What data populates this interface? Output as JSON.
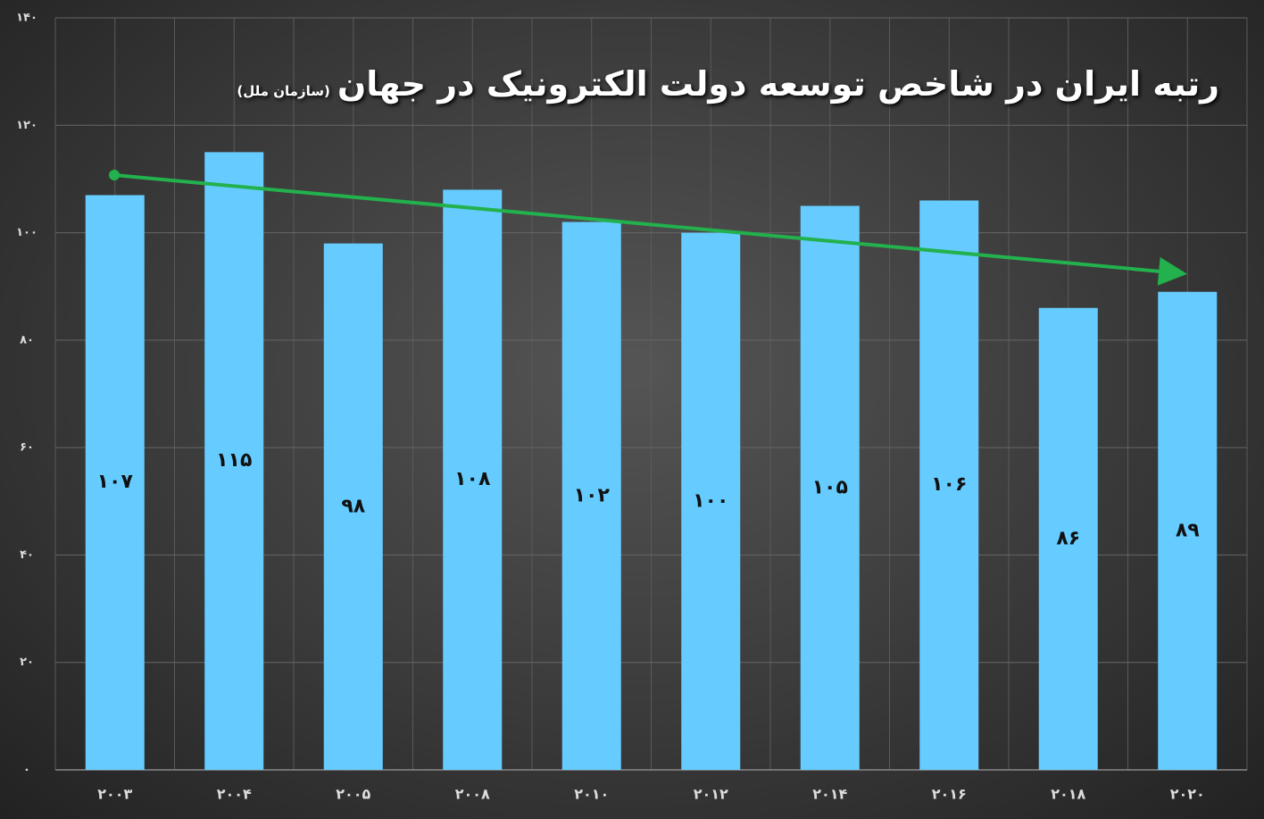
{
  "chart_data": {
    "type": "bar",
    "title": "رتبه ایران در شاخص توسعه دولت الکترونیک در جهان",
    "subtitle": "(سازمان ملل)",
    "categories": [
      "۲۰۰۳",
      "۲۰۰۴",
      "۲۰۰۵",
      "۲۰۰۸",
      "۲۰۱۰",
      "۲۰۱۲",
      "۲۰۱۴",
      "۲۰۱۶",
      "۲۰۱۸",
      "۲۰۲۰"
    ],
    "values": [
      107,
      115,
      98,
      108,
      102,
      100,
      105,
      106,
      86,
      89
    ],
    "value_labels": [
      "۱۰۷",
      "۱۱۵",
      "۹۸",
      "۱۰۸",
      "۱۰۲",
      "۱۰۰",
      "۱۰۵",
      "۱۰۶",
      "۸۶",
      "۸۹"
    ],
    "color": "#66ccff",
    "ylim": [
      0,
      140
    ],
    "yticks": [
      {
        "value": 0,
        "label": "۰"
      },
      {
        "value": 20,
        "label": "۲۰"
      },
      {
        "value": 40,
        "label": "۴۰"
      },
      {
        "value": 60,
        "label": "۶۰"
      },
      {
        "value": 80,
        "label": "۸۰"
      },
      {
        "value": 100,
        "label": "۱۰۰"
      },
      {
        "value": 120,
        "label": "۱۲۰"
      },
      {
        "value": 140,
        "label": "۱۴۰"
      }
    ],
    "grid": true
  }
}
